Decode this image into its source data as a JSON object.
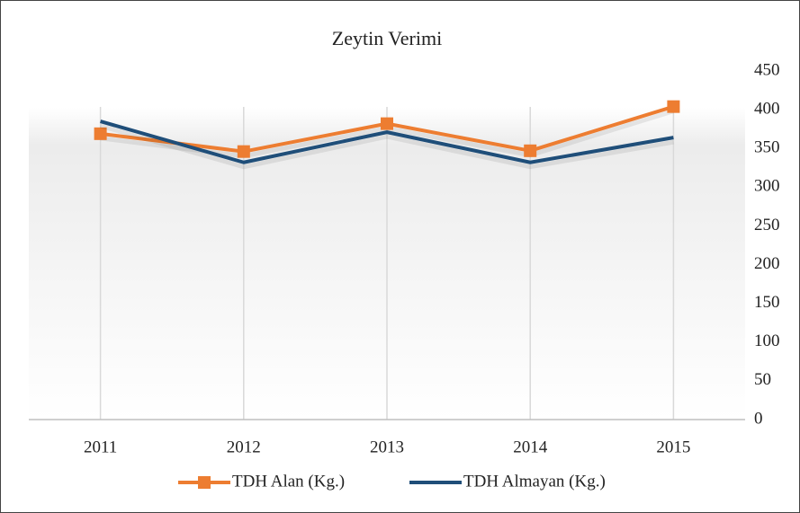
{
  "chart_data": {
    "type": "line",
    "title": "Zeytin Verimi",
    "categories": [
      "2011",
      "2012",
      "2013",
      "2014",
      "2015"
    ],
    "series": [
      {
        "name": "TDH Alan (Kg.)",
        "color": "#ed7d31",
        "marker": "square",
        "values": [
          369,
          346,
          382,
          347,
          404
        ]
      },
      {
        "name": "TDH Almayan (Kg.)",
        "color": "#1f4e79",
        "marker": "none",
        "values": [
          385,
          332,
          371,
          332,
          364
        ]
      }
    ],
    "ylim": [
      0,
      450
    ],
    "yticks": [
      0,
      50,
      100,
      150,
      200,
      250,
      300,
      350,
      400,
      450
    ],
    "y_axis_side": "right",
    "grid": "vertical",
    "legend": "bottom"
  }
}
